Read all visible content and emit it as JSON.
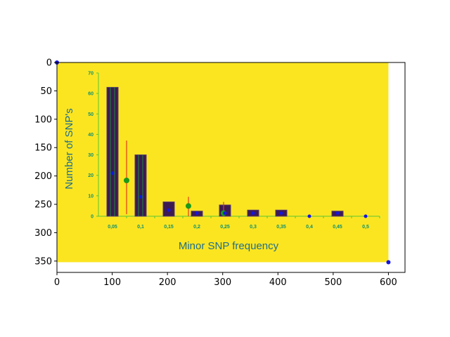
{
  "chart_data": [
    {
      "type": "scatter",
      "title": "",
      "xlabel": "",
      "ylabel": "",
      "xlim": [
        0,
        630
      ],
      "ylim": [
        370,
        0
      ],
      "y_inverted": true,
      "x_ticks": [
        "0",
        "100",
        "200",
        "300",
        "400",
        "500",
        "600"
      ],
      "y_ticks": [
        "0",
        "50",
        "100",
        "150",
        "200",
        "250",
        "300",
        "350"
      ],
      "background_image": "yellow histogram figure spanning x 0-600, y 0-352",
      "series": [
        {
          "color": "#1515e0",
          "points": [
            [
              0,
              0
            ],
            [
              600,
              352
            ]
          ]
        }
      ],
      "grid": false
    },
    {
      "type": "bar",
      "title": "",
      "xlabel": "Minor SNP frequency",
      "ylabel": "Number of SNP's",
      "categories": [
        "0,05",
        "0,1",
        "0,15",
        "0,2",
        "0,25",
        "0,3",
        "0,35",
        "0,4",
        "0,45",
        "0,5"
      ],
      "values": [
        63,
        30,
        7,
        2.5,
        5.5,
        3,
        3,
        0,
        2.5,
        0
      ],
      "ylim": [
        0,
        70
      ],
      "y_ticks": [
        "0",
        "10",
        "20",
        "30",
        "40",
        "50",
        "60",
        "70"
      ],
      "bar_color": "#3c1a52",
      "background_color": "#fbe521",
      "overlay": {
        "blue_markers": [
          21,
          9.5,
          3,
          1.5,
          1.5,
          1.5,
          1.5,
          0,
          1.5,
          0
        ],
        "green_points": [
          {
            "x_pos": 0.5,
            "y": 17.5,
            "err_low": 1,
            "err_high": 37
          },
          {
            "x_pos": 2.7,
            "y": 5,
            "err_low": 0,
            "err_high": 9.5
          },
          {
            "x_pos": 3.95,
            "y": 1.5,
            "err_low": 0,
            "err_high": 7
          }
        ],
        "error_color": "#e53a1a",
        "green_color": "#1a9a1a"
      }
    }
  ]
}
